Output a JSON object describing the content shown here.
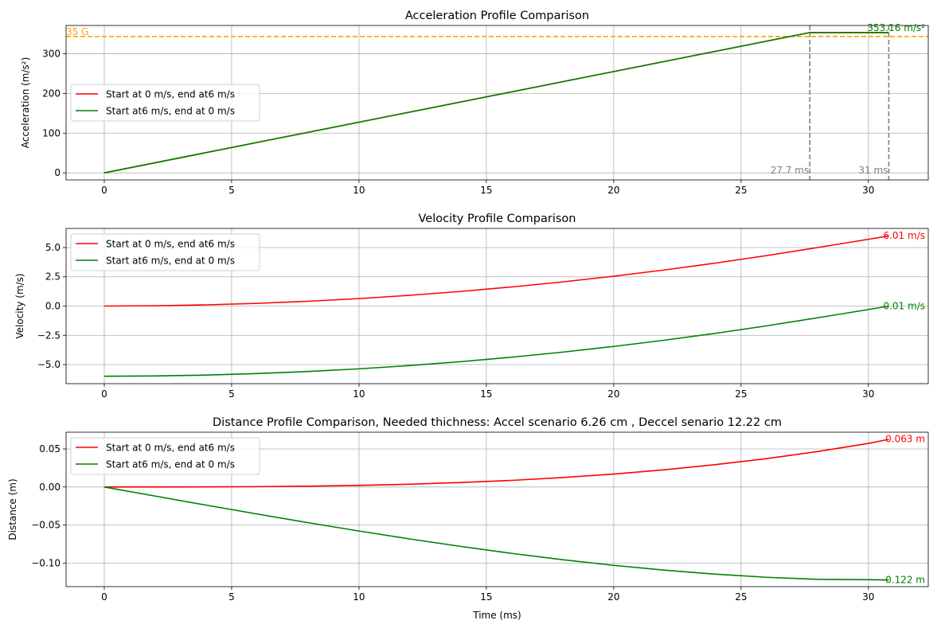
{
  "chart_data": [
    {
      "type": "line",
      "title": "Acceleration Profile Comparison",
      "xlabel": "",
      "ylabel": "Acceleration (m/s²)",
      "xlim": [
        -1.5,
        32.35
      ],
      "ylim": [
        -17.7,
        371
      ],
      "xticks": [
        0,
        5,
        10,
        15,
        20,
        25,
        30
      ],
      "yticks": [
        0,
        100,
        200,
        300
      ],
      "ytick_labels": [
        "0",
        "100",
        "200",
        "300"
      ],
      "grid": true,
      "legend": "center-left",
      "series": [
        {
          "name": "Start at 0 m/s, end at6 m/s",
          "color": "#ff0000",
          "x": [
            0,
            27.7,
            30.8
          ],
          "y": [
            0,
            353.16,
            353.16
          ]
        },
        {
          "name": "Start at6 m/s, end at 0 m/s",
          "color": "#008000",
          "x": [
            0,
            27.7,
            30.8
          ],
          "y": [
            0,
            353.16,
            353.16
          ]
        }
      ],
      "hlines": [
        {
          "y": 343.35,
          "color": "#ffa500",
          "label": "35 G"
        }
      ],
      "vlines": [
        {
          "x": 27.7,
          "color": "#808080",
          "label": "27.7 ms"
        },
        {
          "x": 30.8,
          "color": "#808080",
          "label": "31 ms"
        }
      ],
      "end_labels": [
        {
          "text": "353.16 m/s²",
          "color": "#008000",
          "y": 353.16
        }
      ]
    },
    {
      "type": "line",
      "title": "Velocity Profile Comparison",
      "xlabel": "",
      "ylabel": "Velocity (m/s)",
      "xlim": [
        -1.5,
        32.35
      ],
      "ylim": [
        -6.63,
        6.63
      ],
      "xticks": [
        0,
        5,
        10,
        15,
        20,
        25,
        30
      ],
      "yticks": [
        -5,
        -2.5,
        0,
        2.5,
        5
      ],
      "ytick_labels": [
        "−5.0",
        "−2.5",
        "0.0",
        "2.5",
        "5.0"
      ],
      "grid": true,
      "legend": "upper-left",
      "series": [
        {
          "name": "Start at 0 m/s, end at6 m/s",
          "color": "#ff0000",
          "x": [
            0,
            2,
            4,
            6,
            8,
            10,
            12,
            14,
            16,
            18,
            20,
            22,
            24,
            26,
            27.7,
            28,
            30,
            30.8
          ],
          "y": [
            0,
            0.026,
            0.102,
            0.23,
            0.408,
            0.637,
            0.918,
            1.249,
            1.632,
            2.065,
            2.55,
            3.085,
            3.672,
            4.309,
            4.891,
            4.997,
            5.703,
            5.99
          ]
        },
        {
          "name": "Start at6 m/s, end at 0 m/s",
          "color": "#008000",
          "x": [
            0,
            2,
            4,
            6,
            8,
            10,
            12,
            14,
            16,
            18,
            20,
            22,
            24,
            26,
            27.7,
            28,
            30,
            30.8
          ],
          "y": [
            -6,
            -5.974,
            -5.898,
            -5.77,
            -5.592,
            -5.363,
            -5.082,
            -4.751,
            -4.368,
            -3.935,
            -3.45,
            -2.915,
            -2.328,
            -1.691,
            -1.109,
            -1.003,
            -0.297,
            -0.01
          ]
        }
      ],
      "end_labels": [
        {
          "text": "6.01 m/s",
          "color": "#ff0000",
          "y": 6.01
        },
        {
          "text": "0.01 m/s",
          "color": "#008000",
          "y": 0.01
        }
      ]
    },
    {
      "type": "line",
      "title": "Distance Profile Comparison, Needed thichness:  Accel scenario 6.26 cm , Deccel senario 12.22 cm",
      "xlabel": "Time (ms)",
      "ylabel": "Distance (m)",
      "xlim": [
        -1.5,
        32.35
      ],
      "ylim": [
        -0.131,
        0.072
      ],
      "xticks": [
        0,
        5,
        10,
        15,
        20,
        25,
        30
      ],
      "yticks": [
        -0.1,
        -0.05,
        0,
        0.05
      ],
      "ytick_labels": [
        "−0.10",
        "−0.05",
        "0.00",
        "0.05"
      ],
      "grid": true,
      "legend": "upper-left",
      "series": [
        {
          "name": "Start at 0 m/s, end at6 m/s",
          "color": "#ff0000",
          "x": [
            0,
            2,
            4,
            6,
            8,
            10,
            12,
            14,
            16,
            18,
            20,
            22,
            24,
            26,
            27.7,
            28,
            30,
            30.8
          ],
          "y": [
            0,
            2e-05,
            0.00014,
            0.00046,
            0.00109,
            0.00213,
            0.00367,
            0.00583,
            0.0087,
            0.0124,
            0.017,
            0.0226,
            0.0294,
            0.0373,
            0.0452,
            0.0466,
            0.0573,
            0.0626
          ]
        },
        {
          "name": "Start at6 m/s, end at 0 m/s",
          "color": "#008000",
          "x": [
            0,
            2,
            4,
            6,
            8,
            10,
            12,
            14,
            16,
            18,
            20,
            22,
            24,
            26,
            27.7,
            28,
            30,
            30.8
          ],
          "y": [
            0,
            -0.01198,
            -0.02386,
            -0.03554,
            -0.04691,
            -0.05788,
            -0.06833,
            -0.07817,
            -0.0873,
            -0.0956,
            -0.103,
            -0.1094,
            -0.1146,
            -0.1187,
            -0.121,
            -0.1214,
            -0.1219,
            -0.1222
          ]
        }
      ],
      "end_labels": [
        {
          "text": "0.063 m",
          "color": "#ff0000",
          "y": 0.063
        },
        {
          "text": "-0.122 m",
          "color": "#008000",
          "y": -0.122
        }
      ]
    }
  ]
}
